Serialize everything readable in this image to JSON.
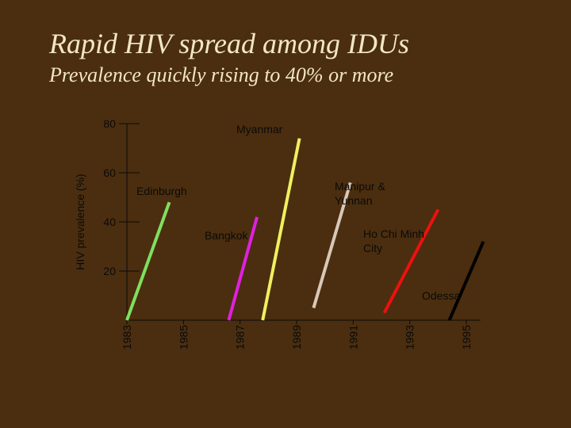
{
  "title": "Rapid HIV spread among IDUs",
  "subtitle": "Prevalence quickly rising to 40% or more",
  "chart_data": {
    "type": "line",
    "title": "Rapid HIV spread among IDUs",
    "subtitle": "Prevalence quickly rising to 40% or more",
    "ylabel": "HIV prevalence (%)",
    "xlabel": "",
    "x_ticks": [
      "1983",
      "1985",
      "1987",
      "1989",
      "1991",
      "1993",
      "1995"
    ],
    "y_ticks": [
      20,
      40,
      60,
      80
    ],
    "xlim": [
      1983,
      1995.5
    ],
    "ylim": [
      0,
      80
    ],
    "grid": false,
    "legend": "none",
    "series": [
      {
        "name": "Edinburgh",
        "color": "#7fe060",
        "points": [
          [
            1983.0,
            0
          ],
          [
            1984.5,
            48
          ]
        ]
      },
      {
        "name": "Bangkok",
        "color": "#e020e0",
        "points": [
          [
            1986.6,
            0
          ],
          [
            1987.6,
            42
          ]
        ]
      },
      {
        "name": "Myanmar",
        "color": "#f0f060",
        "points": [
          [
            1987.8,
            0
          ],
          [
            1989.1,
            74
          ]
        ]
      },
      {
        "name": "Manipur & Yunnan",
        "color": "#d8c8b8",
        "points": [
          [
            1989.6,
            5
          ],
          [
            1990.9,
            56
          ]
        ]
      },
      {
        "name": "Ho Chi Minh City",
        "color": "#ee1010",
        "points": [
          [
            1992.1,
            3
          ],
          [
            1994.0,
            45
          ]
        ]
      },
      {
        "name": "Odessa",
        "color": "#000000",
        "points": [
          [
            1994.4,
            0
          ],
          [
            1995.6,
            32
          ]
        ]
      }
    ]
  }
}
